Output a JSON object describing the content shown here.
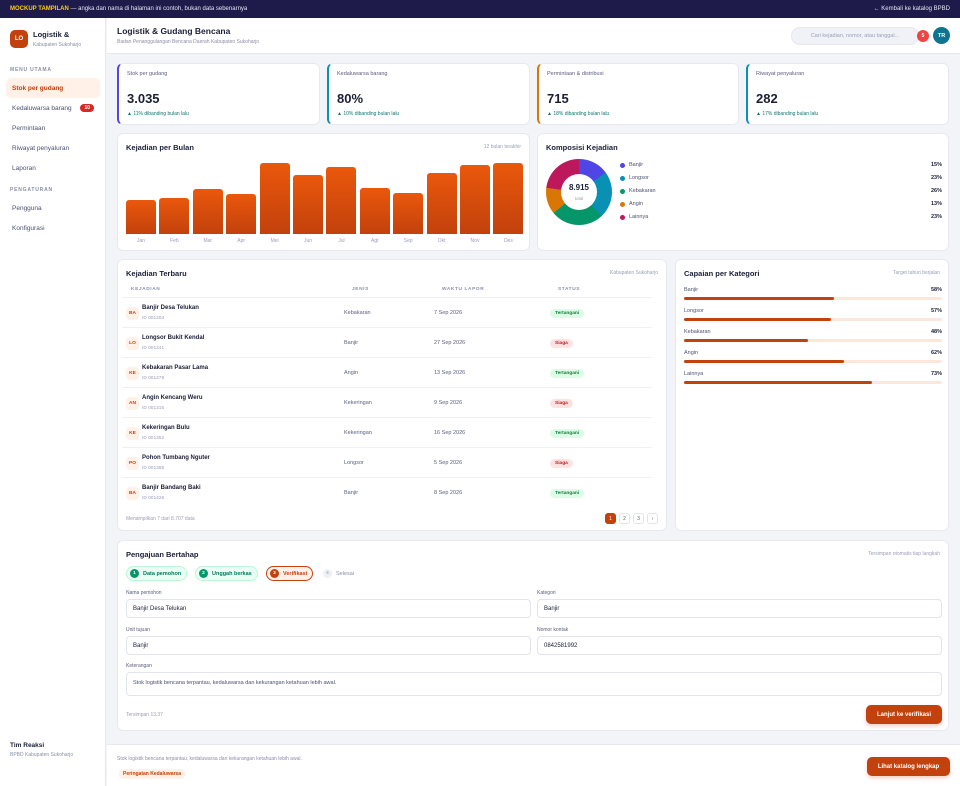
{
  "topbar": {
    "tag": "MOCKUP TAMPILAN",
    "note": " — angka dan nama di halaman ini contoh, bukan data sebenarnya",
    "back": "← Kembali ke katalog BPBD"
  },
  "sidebar": {
    "logo_text": "LO",
    "brand_title": "Logistik &",
    "brand_sub": "Kabupaten Sukoharjo",
    "section_main": "MENU UTAMA",
    "items": [
      {
        "label": "Stok per gudang",
        "active": true
      },
      {
        "label": "Kedaluwarsa barang",
        "badge": "10"
      },
      {
        "label": "Permintaan"
      },
      {
        "label": "Riwayat penyaluran"
      },
      {
        "label": "Laporan"
      }
    ],
    "section_settings": "PENGATURAN",
    "settings_items": [
      {
        "label": "Pengguna"
      },
      {
        "label": "Konfigurasi"
      }
    ],
    "footer_name": "Tim Reaksi",
    "footer_role": "BPBD Kabupaten Sukoharjo"
  },
  "header": {
    "title": "Logistik & Gudang Bencana",
    "subtitle": "Badan Penanggulangan Bencana Daerah Kabupaten Sukoharjo",
    "search_placeholder": "Cari kejadian, nomor, atau tanggal...",
    "notif_count": "5",
    "avatar_initials": "TR"
  },
  "kpis": [
    {
      "label": "Stok per gudang",
      "value": "3.035",
      "delta": "▲ 11% dibanding bulan lalu",
      "color": "#4f46e5"
    },
    {
      "label": "Kedaluwarsa barang",
      "value": "80%",
      "delta": "▲ 10% dibanding bulan lalu",
      "color": "#0891b2"
    },
    {
      "label": "Permintaan & distribusi",
      "value": "715",
      "delta": "▲ 18% dibanding bulan lalu",
      "color": "#d97706"
    },
    {
      "label": "Riwayat penyaluran",
      "value": "282",
      "delta": "▲ 17% dibanding bulan lalu",
      "color": "#0891b2"
    }
  ],
  "bar_card": {
    "title": "Kejadian per Bulan",
    "note": "12 bulan terakhir"
  },
  "donut_card": {
    "title": "Komposisi Kejadian",
    "total": "8.915",
    "total_label": "total"
  },
  "chart_data": [
    {
      "type": "bar",
      "title": "Kejadian per Bulan",
      "categories": [
        "Jan",
        "Feb",
        "Mar",
        "Apr",
        "Mei",
        "Jun",
        "Jul",
        "Agt",
        "Sep",
        "Okt",
        "Nov",
        "Des"
      ],
      "values": [
        45,
        47,
        59,
        53,
        93,
        78,
        88,
        60,
        54,
        80,
        91,
        93
      ],
      "ylim": [
        0,
        100
      ],
      "grid": false,
      "color": "#ea580c"
    },
    {
      "type": "pie",
      "title": "Komposisi Kejadian",
      "labels": [
        "Banjir",
        "Longsor",
        "Kebakaran",
        "Angin",
        "Lainnya"
      ],
      "values": [
        15,
        23,
        26,
        13,
        23
      ],
      "display": [
        "15%",
        "23%",
        "26%",
        "13%",
        "23%"
      ],
      "colors": [
        "#4f46e5",
        "#0891b2",
        "#059669",
        "#d97706",
        "#be185d"
      ],
      "legend": "right"
    }
  ],
  "table": {
    "title": "Kejadian Terbaru",
    "note": "Kabupaten Sukoharjo",
    "headers": [
      "KEJADIAN",
      "JENIS",
      "WAKTU LAPOR",
      "STATUS"
    ],
    "rows": [
      {
        "initials": "BA",
        "name": "Banjir Desa Telukan",
        "id": "ID 001204",
        "jenis": "Kebakaran",
        "waktu": "7 Sep 2026",
        "status": "Tertangani",
        "ok": true
      },
      {
        "initials": "LO",
        "name": "Longsor Bukit Kendal",
        "id": "ID 001241",
        "jenis": "Banjir",
        "waktu": "27 Sep 2026",
        "status": "Siaga",
        "ok": false
      },
      {
        "initials": "KE",
        "name": "Kebakaran Pasar Lama",
        "id": "ID 001278",
        "jenis": "Angin",
        "waktu": "13 Sep 2026",
        "status": "Tertangani",
        "ok": true
      },
      {
        "initials": "AN",
        "name": "Angin Kencang Weru",
        "id": "ID 001315",
        "jenis": "Kekeringan",
        "waktu": "9 Sep 2026",
        "status": "Siaga",
        "ok": false
      },
      {
        "initials": "KE",
        "name": "Kekeringan Bulu",
        "id": "ID 001352",
        "jenis": "Kekeringan",
        "waktu": "16 Sep 2026",
        "status": "Tertangani",
        "ok": true
      },
      {
        "initials": "PO",
        "name": "Pohon Tumbang Nguter",
        "id": "ID 001389",
        "jenis": "Longsor",
        "waktu": "5 Sep 2026",
        "status": "Siaga",
        "ok": false
      },
      {
        "initials": "BA",
        "name": "Banjir Bandang Baki",
        "id": "ID 001426",
        "jenis": "Banjir",
        "waktu": "8 Sep 2026",
        "status": "Tertangani",
        "ok": true
      }
    ],
    "footer": "Menampilkan 7 dari 8.707 data",
    "pages": [
      "1",
      "2",
      "3",
      "›"
    ]
  },
  "capaian": {
    "title": "Capaian per Kategori",
    "note": "Target tahun berjalan",
    "items": [
      {
        "label": "Banjir",
        "value": 58,
        "display": "58%"
      },
      {
        "label": "Longsor",
        "value": 57,
        "display": "57%"
      },
      {
        "label": "Kebakaran",
        "value": 48,
        "display": "48%"
      },
      {
        "label": "Angin",
        "value": 62,
        "display": "62%"
      },
      {
        "label": "Lainnya",
        "value": 73,
        "display": "73%"
      }
    ]
  },
  "form": {
    "title": "Pengajuan Bertahap",
    "note": "Tersimpan otomatis tiap langkah",
    "steps": [
      {
        "num": "1",
        "label": "Data pemohon",
        "state": "done"
      },
      {
        "num": "2",
        "label": "Unggah berkas",
        "state": "done"
      },
      {
        "num": "3",
        "label": "Verifikasi",
        "state": "cur"
      },
      {
        "num": "4",
        "label": "Selesai",
        "state": "todo"
      }
    ],
    "fields": {
      "nama_label": "Nama pemohon",
      "nama_value": "Banjir Desa Telukan",
      "kategori_label": "Kategori",
      "kategori_value": "Banjir",
      "unit_label": "Unit tujuan",
      "unit_value": "Banjir",
      "kontak_label": "Nomor kontak",
      "kontak_value": "0842581992",
      "ket_label": "Keterangan",
      "ket_value": "Stok logistik bencana terpantau, kedaluwarsa dan kekurangan ketahuan lebih awal."
    },
    "saved": "Tersimpan 13.37",
    "next_button": "Lanjut ke verifikasi"
  },
  "bottombar": {
    "text": "Stok logistik bencana terpantau, kedaluwarsa dan kekurangan ketahuan lebih awal.",
    "tag": "Peringatan Kedaluwarsa",
    "button": "Lihat katalog lengkap"
  }
}
